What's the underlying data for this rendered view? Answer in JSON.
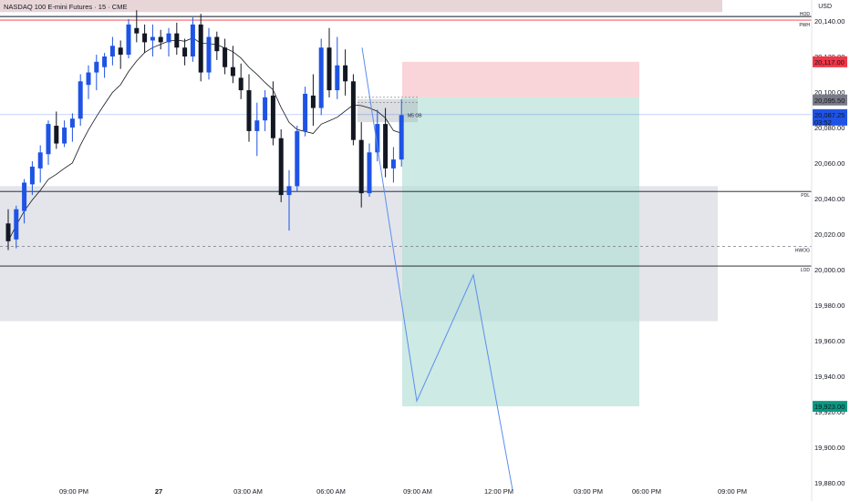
{
  "header": {
    "title": "NASDAQ 100 E-mini Futures · 15 · CME",
    "currency": "USD"
  },
  "chart_data": {
    "type": "candlestick",
    "title": "NASDAQ 100 E-mini Futures · 15 · CME",
    "ylim": [
      19880,
      20145
    ],
    "y_ticks": [
      "20,140.00",
      "20,120.00",
      "20,100.00",
      "20,080.00",
      "20,060.00",
      "20,040.00",
      "20,020.00",
      "20,000.00",
      "19,980.00",
      "19,960.00",
      "19,940.00",
      "19,920.00",
      "19,900.00",
      "19,880.00"
    ],
    "x_ticks": [
      "09:00 PM",
      "27",
      "03:00 AM",
      "06:00 AM",
      "09:00 AM",
      "12:00 PM",
      "03:00 PM",
      "06:00 PM",
      "09:00 PM"
    ],
    "price_labels": [
      {
        "text": "20,117.00",
        "value": 20117,
        "color": "#f23645"
      },
      {
        "text": "20,095.50",
        "value": 20095.5,
        "color": "#787b86"
      },
      {
        "text": "20,087.25",
        "value": 20087.25,
        "color": "#1e53e5",
        "sub": "03:52"
      },
      {
        "text": "19,923.00",
        "value": 19923,
        "color": "#089981"
      }
    ],
    "levels": [
      {
        "name": "HOD",
        "value": 20142.5,
        "color": "#131722",
        "style": "solid"
      },
      {
        "name": "PWH",
        "value": 20140.5,
        "color": "#f23645",
        "style": "solid"
      },
      {
        "name": "PDL",
        "value": 20044,
        "color": "#131722",
        "style": "solid"
      },
      {
        "name": "HWOG",
        "value": 20013,
        "color": "#787b86",
        "style": "dashed"
      },
      {
        "name": "LOD",
        "value": 20002,
        "color": "#131722",
        "style": "solid"
      }
    ],
    "zones": [
      {
        "name": "gray-zone",
        "y1": 20047,
        "y2": 19971,
        "color": "#d1d4dc"
      },
      {
        "name": "top-band",
        "y1": 20160,
        "y2": 20145,
        "color": "#e8d5d8"
      }
    ],
    "ob_label": "M5 OB",
    "position": {
      "entry": 20097,
      "stop": 20117,
      "target": 19923
    },
    "candles": [
      [
        20026,
        20034,
        20011,
        20016
      ],
      [
        20017,
        20036,
        20012,
        20034
      ],
      [
        20033,
        20051,
        20026,
        20049
      ],
      [
        20048,
        20061,
        20042,
        20058
      ],
      [
        20057,
        20070,
        20049,
        20066
      ],
      [
        20065,
        20084,
        20059,
        20082
      ],
      [
        20081,
        20089,
        20068,
        20071
      ],
      [
        20071,
        20084,
        20069,
        20080
      ],
      [
        20080,
        20088,
        20072,
        20085
      ],
      [
        20085,
        20110,
        20081,
        20106
      ],
      [
        20104,
        20115,
        20096,
        20111
      ],
      [
        20111,
        20121,
        20101,
        20117
      ],
      [
        20114,
        20122,
        20108,
        20120
      ],
      [
        20120,
        20131,
        20115,
        20126
      ],
      [
        20125,
        20129,
        20113,
        20121
      ],
      [
        20121,
        20141,
        20119,
        20138
      ],
      [
        20136,
        20146,
        20128,
        20133
      ],
      [
        20133,
        20138,
        20122,
        20128
      ],
      [
        20129,
        20138,
        20120,
        20131
      ],
      [
        20131,
        20135,
        20124,
        20128
      ],
      [
        20128,
        20136,
        20120,
        20133
      ],
      [
        20133,
        20139,
        20121,
        20125
      ],
      [
        20125,
        20130,
        20115,
        20120
      ],
      [
        20120,
        20142,
        20117,
        20138
      ],
      [
        20138,
        20144,
        20106,
        20111
      ],
      [
        20111,
        20136,
        20107,
        20131
      ],
      [
        20131,
        20134,
        20118,
        20123
      ],
      [
        20125,
        20130,
        20110,
        20114
      ],
      [
        20114,
        20126,
        20105,
        20109
      ],
      [
        20108,
        20116,
        20096,
        20101
      ],
      [
        20101,
        20110,
        20072,
        20078
      ],
      [
        20078,
        20094,
        20064,
        20084
      ],
      [
        20084,
        20101,
        20078,
        20097
      ],
      [
        20098,
        20106,
        20070,
        20074
      ],
      [
        20074,
        20079,
        20038,
        20042
      ],
      [
        20042,
        20056,
        20022,
        20047
      ],
      [
        20047,
        20081,
        20044,
        20078
      ],
      [
        20078,
        20103,
        20075,
        20099
      ],
      [
        20098,
        20110,
        20081,
        20091
      ],
      [
        20091,
        20130,
        20087,
        20125
      ],
      [
        20125,
        20136,
        20097,
        20101
      ],
      [
        20101,
        20131,
        20096,
        20115
      ],
      [
        20115,
        20124,
        20098,
        20106
      ],
      [
        20106,
        20110,
        20070,
        20073
      ],
      [
        20073,
        20083,
        20035,
        20043
      ],
      [
        20043,
        20071,
        20041,
        20066
      ],
      [
        20066,
        20090,
        20061,
        20082
      ],
      [
        20082,
        20091,
        20052,
        20057
      ],
      [
        20057,
        20069,
        20049,
        20062
      ],
      [
        20062,
        20096,
        20058,
        20087
      ]
    ]
  }
}
